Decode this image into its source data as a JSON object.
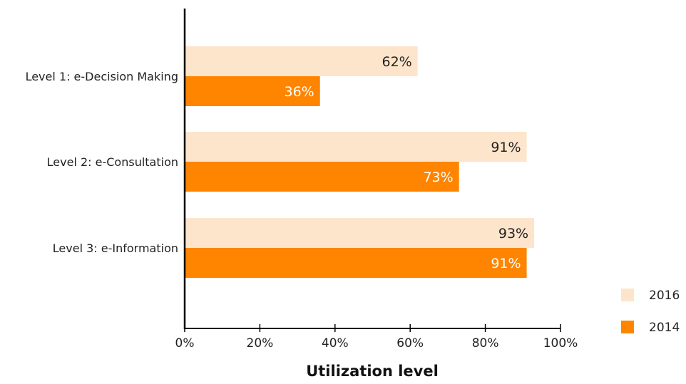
{
  "chart_data": {
    "type": "bar",
    "orientation": "horizontal",
    "title": "",
    "xlabel": "Utilization level",
    "ylabel": "",
    "categories": [
      "Level 1: e-Decision Making",
      "Level 2: e-Consultation",
      "Level 3: e-Information"
    ],
    "series": [
      {
        "name": "2016",
        "values": [
          62,
          91,
          93
        ],
        "labels": [
          "62%",
          "91%",
          "93%"
        ],
        "color": "#fde5cc",
        "label_color": "#222222"
      },
      {
        "name": "2014",
        "values": [
          36,
          73,
          91
        ],
        "labels": [
          "36%",
          "73%",
          "91%"
        ],
        "color": "#ff8400",
        "label_color": "#ffffff"
      }
    ],
    "xlim": [
      0,
      100
    ],
    "xticks": [
      0,
      20,
      40,
      60,
      80,
      100
    ],
    "xtick_labels": [
      "0%",
      "20%",
      "40%",
      "60%",
      "80%",
      "100%"
    ],
    "grid": false,
    "legend_position": "bottom-right"
  }
}
